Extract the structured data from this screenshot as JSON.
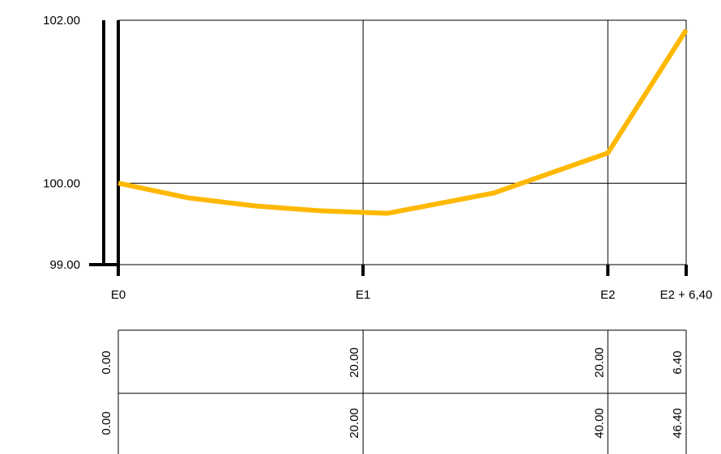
{
  "chart_data": {
    "type": "line",
    "title": "",
    "xlabel": "",
    "ylabel": "",
    "ylim": [
      99.0,
      102.0
    ],
    "y_ticks": [
      "99.00",
      "100.00",
      "102.00"
    ],
    "x_stations": [
      {
        "label": "E0",
        "distance": 0
      },
      {
        "label": "E1",
        "distance": 20
      },
      {
        "label": "E2",
        "distance": 40
      },
      {
        "label": "E2 + 6,40",
        "distance": 46.4
      }
    ],
    "series": [
      {
        "color": "#FFB800",
        "points": [
          {
            "x": 0.0,
            "y": 100.0
          },
          {
            "x": 5.7,
            "y": 99.82
          },
          {
            "x": 11.2,
            "y": 99.72
          },
          {
            "x": 16.6,
            "y": 99.66
          },
          {
            "x": 22.0,
            "y": 99.63
          },
          {
            "x": 30.7,
            "y": 99.88
          },
          {
            "x": 40.0,
            "y": 100.37
          },
          {
            "x": 46.4,
            "y": 101.88
          }
        ]
      }
    ],
    "grid": true,
    "table": {
      "partial_distances": [
        "0.00",
        "20.00",
        "20.00",
        "6.40"
      ],
      "cumulative_distances": [
        "0.00",
        "20.00",
        "40.00",
        "46.40"
      ]
    }
  }
}
